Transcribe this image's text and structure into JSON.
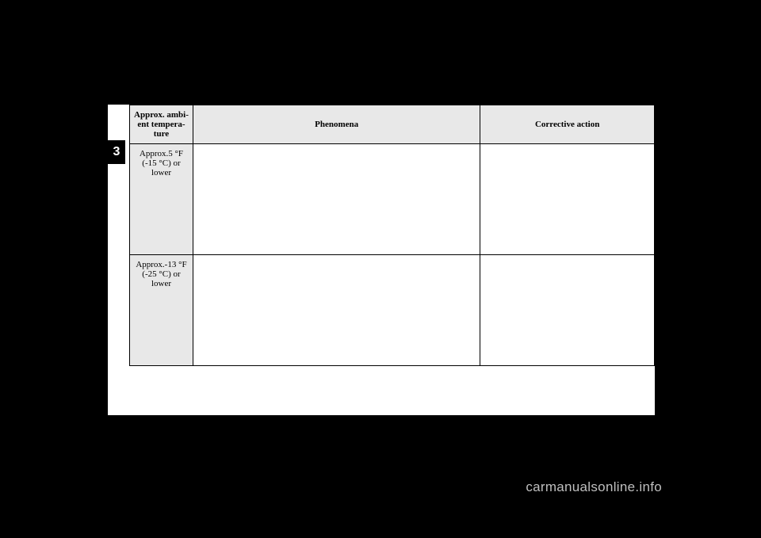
{
  "chapter_number": "3",
  "table": {
    "headers": {
      "col1": "Approx. ambi-\nent tempera-\nture",
      "col2": "Phenomena",
      "col3": "Corrective action"
    },
    "rows": [
      {
        "temp_line1": "Approx.5 °F",
        "temp_line2": "(-15 °C) or",
        "temp_line3": "lower"
      },
      {
        "temp_line1": "Approx.-13 °F",
        "temp_line2": "(-25 °C) or",
        "temp_line3": "lower"
      }
    ]
  },
  "watermark": "carmanualsonline.info",
  "colors": {
    "page_bg": "#000000",
    "content_bg": "#ffffff",
    "header_bg": "#e8e8e8",
    "border": "#000000",
    "watermark_color": "#bfbfbf"
  }
}
